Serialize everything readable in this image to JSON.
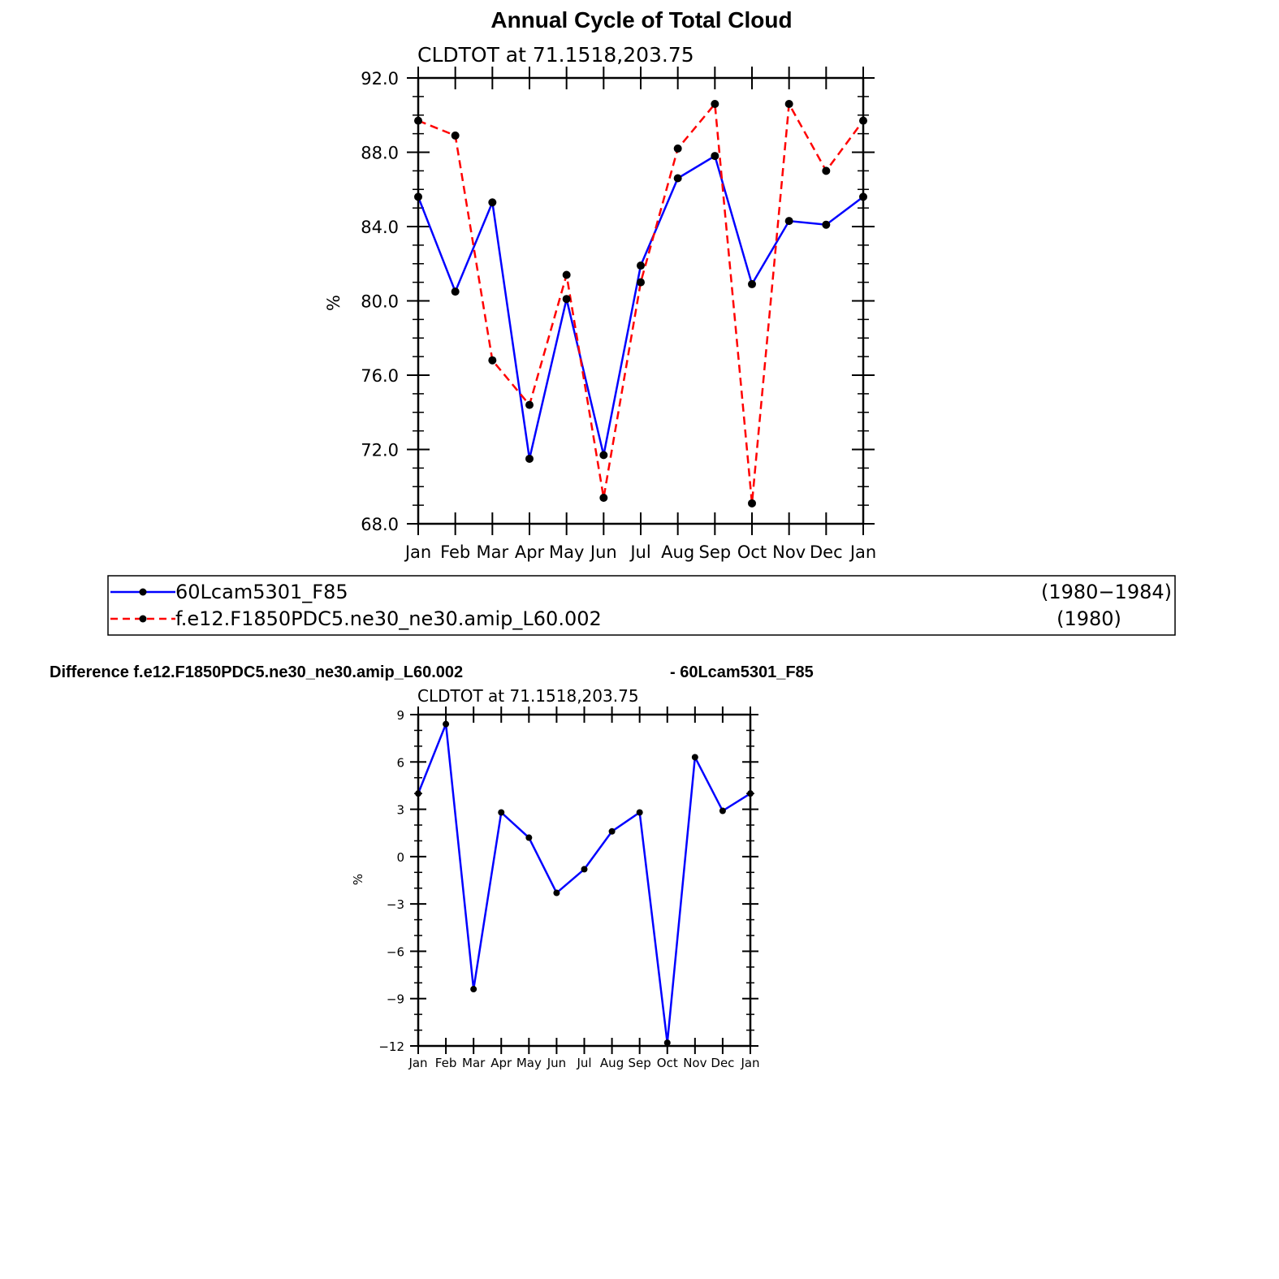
{
  "title": "Annual Cycle of Total Cloud",
  "chart_data": [
    {
      "type": "line",
      "subtitle": "CLDTOT  at  71.1518,203.75",
      "ylabel": "%",
      "ylim": [
        68,
        92
      ],
      "yticks": [
        "68.0",
        "72.0",
        "76.0",
        "80.0",
        "84.0",
        "88.0",
        "92.0"
      ],
      "categories": [
        "Jan",
        "Feb",
        "Mar",
        "Apr",
        "May",
        "Jun",
        "Jul",
        "Aug",
        "Sep",
        "Oct",
        "Nov",
        "Dec",
        "Jan"
      ],
      "series": [
        {
          "name": "60Lcam5301_F85",
          "period": "(1980−1984)",
          "color": "#0000ff",
          "dash": "solid",
          "values": [
            85.6,
            80.5,
            85.3,
            71.5,
            80.1,
            71.7,
            81.9,
            86.6,
            87.8,
            80.9,
            84.3,
            84.1,
            85.6
          ]
        },
        {
          "name": "f.e12.F1850PDC5.ne30_ne30.amip_L60.002",
          "period": "(1980)",
          "color": "#ff0000",
          "dash": "dashed",
          "values": [
            89.7,
            88.9,
            76.8,
            74.4,
            81.4,
            69.4,
            81.0,
            88.2,
            90.6,
            69.1,
            90.6,
            87.0,
            89.7
          ]
        }
      ]
    },
    {
      "type": "line",
      "title_left": "Difference f.e12.F1850PDC5.ne30_ne30.amip_L60.002",
      "title_right": "- 60Lcam5301_F85",
      "subtitle": "CLDTOT  at  71.1518,203.75",
      "ylabel": "%",
      "ylim": [
        -12,
        9
      ],
      "yticks": [
        "−12",
        "−9",
        "−6",
        "−3",
        "0",
        "3",
        "6",
        "9"
      ],
      "categories": [
        "Jan",
        "Feb",
        "Mar",
        "Apr",
        "May",
        "Jun",
        "Jul",
        "Aug",
        "Sep",
        "Oct",
        "Nov",
        "Dec",
        "Jan"
      ],
      "series": [
        {
          "color": "#0000ff",
          "values": [
            4.0,
            8.4,
            -8.4,
            2.8,
            1.2,
            -2.3,
            -0.8,
            1.6,
            2.8,
            -11.8,
            6.3,
            2.9,
            4.0
          ]
        }
      ]
    }
  ]
}
